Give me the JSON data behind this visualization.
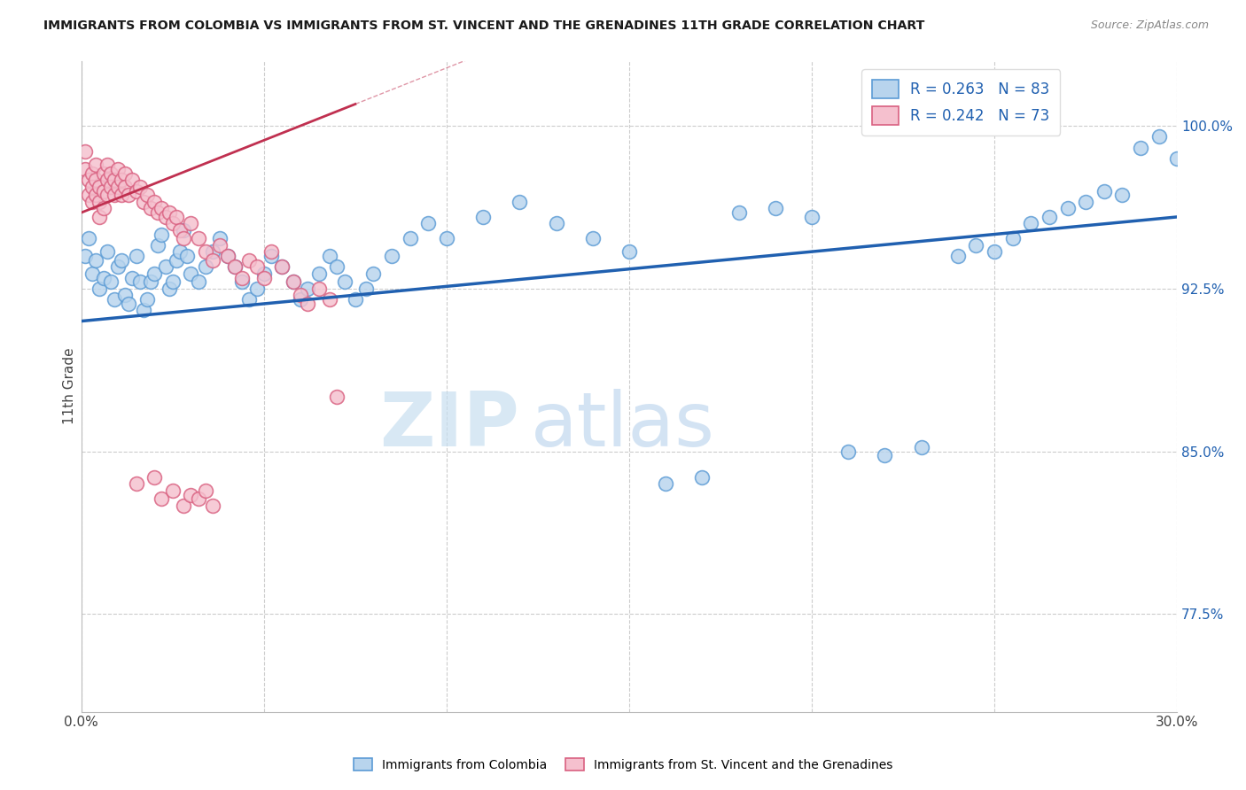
{
  "title": "IMMIGRANTS FROM COLOMBIA VS IMMIGRANTS FROM ST. VINCENT AND THE GRENADINES 11TH GRADE CORRELATION CHART",
  "source": "Source: ZipAtlas.com",
  "ylabel": "11th Grade",
  "ytick_values": [
    0.775,
    0.85,
    0.925,
    1.0
  ],
  "xlim": [
    0.0,
    0.3
  ],
  "ylim": [
    0.73,
    1.03
  ],
  "legend_r_n": [
    "R = 0.263   N = 83",
    "R = 0.242   N = 73"
  ],
  "colombia_face": "#b8d4ed",
  "colombia_edge": "#5b9bd5",
  "stv_face": "#f5c0ce",
  "stv_edge": "#d96080",
  "trend_blue": "#2060b0",
  "trend_pink": "#c03050",
  "watermark_zip": "ZIP",
  "watermark_atlas": "atlas",
  "colombia_x": [
    0.001,
    0.002,
    0.003,
    0.004,
    0.005,
    0.006,
    0.007,
    0.008,
    0.009,
    0.01,
    0.011,
    0.012,
    0.013,
    0.014,
    0.015,
    0.016,
    0.017,
    0.018,
    0.019,
    0.02,
    0.021,
    0.022,
    0.023,
    0.024,
    0.025,
    0.026,
    0.027,
    0.028,
    0.029,
    0.03,
    0.032,
    0.034,
    0.036,
    0.038,
    0.04,
    0.042,
    0.044,
    0.046,
    0.048,
    0.05,
    0.052,
    0.055,
    0.058,
    0.06,
    0.062,
    0.065,
    0.068,
    0.07,
    0.072,
    0.075,
    0.078,
    0.08,
    0.085,
    0.09,
    0.095,
    0.1,
    0.11,
    0.12,
    0.13,
    0.14,
    0.15,
    0.16,
    0.17,
    0.18,
    0.19,
    0.2,
    0.21,
    0.22,
    0.23,
    0.24,
    0.245,
    0.25,
    0.255,
    0.26,
    0.265,
    0.27,
    0.275,
    0.28,
    0.285,
    0.29,
    0.295,
    0.3,
    0.305
  ],
  "colombia_y": [
    0.94,
    0.948,
    0.932,
    0.938,
    0.925,
    0.93,
    0.942,
    0.928,
    0.92,
    0.935,
    0.938,
    0.922,
    0.918,
    0.93,
    0.94,
    0.928,
    0.915,
    0.92,
    0.928,
    0.932,
    0.945,
    0.95,
    0.935,
    0.925,
    0.928,
    0.938,
    0.942,
    0.952,
    0.94,
    0.932,
    0.928,
    0.935,
    0.942,
    0.948,
    0.94,
    0.935,
    0.928,
    0.92,
    0.925,
    0.932,
    0.94,
    0.935,
    0.928,
    0.92,
    0.925,
    0.932,
    0.94,
    0.935,
    0.928,
    0.92,
    0.925,
    0.932,
    0.94,
    0.948,
    0.955,
    0.948,
    0.958,
    0.965,
    0.955,
    0.948,
    0.942,
    0.835,
    0.838,
    0.96,
    0.962,
    0.958,
    0.85,
    0.848,
    0.852,
    0.94,
    0.945,
    0.942,
    0.948,
    0.955,
    0.958,
    0.962,
    0.965,
    0.97,
    0.968,
    0.99,
    0.995,
    0.985,
    0.98
  ],
  "stv_x": [
    0.001,
    0.001,
    0.002,
    0.002,
    0.003,
    0.003,
    0.003,
    0.004,
    0.004,
    0.004,
    0.005,
    0.005,
    0.005,
    0.006,
    0.006,
    0.006,
    0.007,
    0.007,
    0.007,
    0.008,
    0.008,
    0.009,
    0.009,
    0.01,
    0.01,
    0.011,
    0.011,
    0.012,
    0.012,
    0.013,
    0.014,
    0.015,
    0.016,
    0.017,
    0.018,
    0.019,
    0.02,
    0.021,
    0.022,
    0.023,
    0.024,
    0.025,
    0.026,
    0.027,
    0.028,
    0.03,
    0.032,
    0.034,
    0.036,
    0.038,
    0.04,
    0.042,
    0.044,
    0.046,
    0.048,
    0.05,
    0.052,
    0.055,
    0.058,
    0.06,
    0.062,
    0.065,
    0.068,
    0.07,
    0.015,
    0.02,
    0.022,
    0.025,
    0.028,
    0.03,
    0.032,
    0.034,
    0.036
  ],
  "stv_y": [
    0.988,
    0.98,
    0.975,
    0.968,
    0.978,
    0.972,
    0.965,
    0.982,
    0.975,
    0.968,
    0.972,
    0.965,
    0.958,
    0.978,
    0.97,
    0.962,
    0.982,
    0.975,
    0.968,
    0.978,
    0.972,
    0.975,
    0.968,
    0.98,
    0.972,
    0.975,
    0.968,
    0.978,
    0.972,
    0.968,
    0.975,
    0.97,
    0.972,
    0.965,
    0.968,
    0.962,
    0.965,
    0.96,
    0.962,
    0.958,
    0.96,
    0.955,
    0.958,
    0.952,
    0.948,
    0.955,
    0.948,
    0.942,
    0.938,
    0.945,
    0.94,
    0.935,
    0.93,
    0.938,
    0.935,
    0.93,
    0.942,
    0.935,
    0.928,
    0.922,
    0.918,
    0.925,
    0.92,
    0.875,
    0.835,
    0.838,
    0.828,
    0.832,
    0.825,
    0.83,
    0.828,
    0.832,
    0.825
  ],
  "colombia_trend_x": [
    0.0,
    0.3
  ],
  "colombia_trend_y": [
    0.91,
    0.958
  ],
  "stv_trend_x": [
    0.0,
    0.075
  ],
  "stv_trend_y": [
    0.96,
    1.01
  ]
}
